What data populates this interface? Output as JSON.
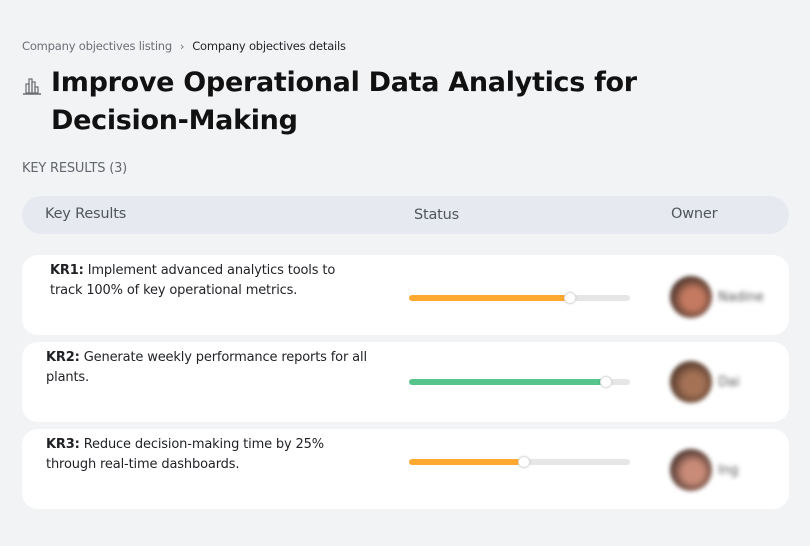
{
  "breadcrumb": {
    "parent": "Company objectives listing",
    "separator": "›",
    "current": "Company objectives details"
  },
  "objective": {
    "icon": "building-chart-icon",
    "title": "Improve Operational Data Analytics for Decision-Making"
  },
  "key_results_section": {
    "label": "KEY RESULTS (3)",
    "count": 3
  },
  "table": {
    "headers": {
      "key_results": "Key Results",
      "status": "Status",
      "owner": "Owner"
    },
    "rows": [
      {
        "id": "KR1:",
        "text": "Implement advanced analytics tools to track 100% of key operational metrics.",
        "progress": 73,
        "progress_color": "#ffa931",
        "owner_name": "Nadine",
        "avatar_colors": [
          "#3a2a24",
          "#c47a60"
        ]
      },
      {
        "id": "KR2:",
        "text": "Generate weekly performance reports for all plants.",
        "progress": 89,
        "progress_color": "#56c48b",
        "owner_name": "Dai",
        "avatar_colors": [
          "#4a3326",
          "#a57256"
        ]
      },
      {
        "id": "KR3:",
        "text": "Reduce decision-making time by 25% through real-time dashboards.",
        "progress": 52,
        "progress_color": "#ffa931",
        "owner_name": "Ing",
        "avatar_colors": [
          "#3d2a25",
          "#c98b78"
        ]
      }
    ]
  }
}
